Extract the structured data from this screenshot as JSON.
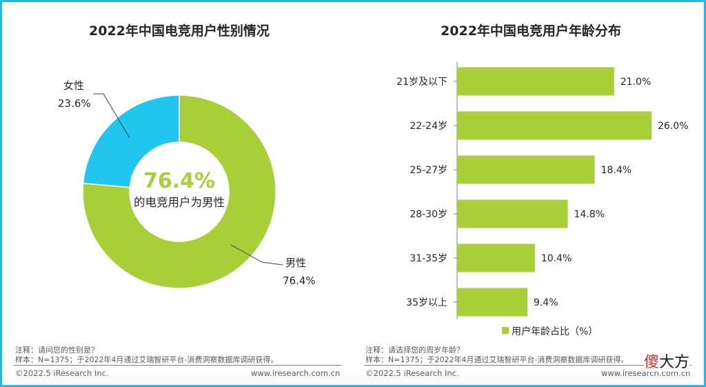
{
  "left_panel": {
    "title": "2022年中国电竞用户性别情况",
    "center_value": "76.4%",
    "center_caption": "的电竞用户为男性",
    "note_question": "注释：请问您的性别是？",
    "note_sample": "样本：N=1375；于2022年4月通过艾瑞智研平台-消费洞察数据库调研获得。",
    "copyright": "©2022.5 iResearch Inc.",
    "website": "www.iresearch.com.cn"
  },
  "right_panel": {
    "title": "2022年中国电竞用户年龄分布",
    "note_question": "注释：请选择您的周岁年龄？",
    "note_sample": "样本：N=1375；于2022年4月通过艾瑞智研平台-消费洞察数据库调研获得。",
    "copyright": "©2022.5 iResearch Inc.",
    "website": "www.iresearch.com.cn"
  },
  "watermark": {
    "char1": "傻",
    "rest": "大方"
  },
  "colors": {
    "green": "#a9cf38",
    "blue": "#21c6ee",
    "frame": "#27b6ea",
    "text": "#262626"
  },
  "chart_data": [
    {
      "type": "pie",
      "donut": true,
      "title": "2022年中国电竞用户性别情况",
      "slices": [
        {
          "label": "男性",
          "value": 76.4,
          "value_label": "76.4%",
          "color": "#a9cf38"
        },
        {
          "label": "女性",
          "value": 23.6,
          "value_label": "23.6%",
          "color": "#21c6ee"
        }
      ]
    },
    {
      "type": "bar",
      "orientation": "horizontal",
      "title": "2022年中国电竞用户年龄分布",
      "categories": [
        "21岁及以下",
        "22-24岁",
        "25-27岁",
        "28-30岁",
        "31-35岁",
        "35岁以上"
      ],
      "series": [
        {
          "name": "用户年龄占比（%）",
          "values": [
            21.0,
            26.0,
            18.4,
            14.8,
            10.4,
            9.4
          ],
          "value_labels": [
            "21.0%",
            "26.0%",
            "18.4%",
            "14.8%",
            "10.4%",
            "9.4%"
          ],
          "color": "#a9cf38"
        }
      ],
      "legend": "bottom"
    }
  ]
}
